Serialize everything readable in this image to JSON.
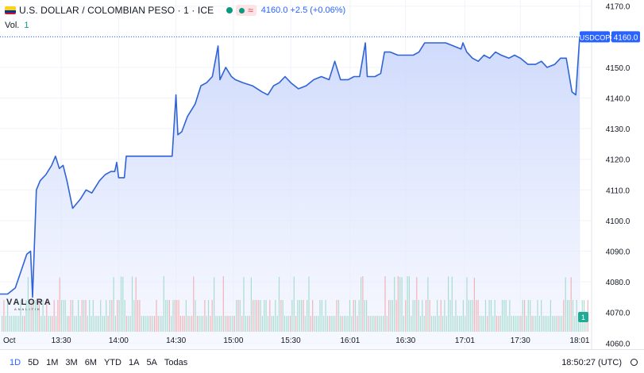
{
  "header": {
    "title": "U.S. DOLLAR / COLOMBIAN PESO · 1 · ICE",
    "approx_symbol": "≈",
    "quote": "4160.0  +2.5 (+0.06%)",
    "vol_label": "Vol.",
    "vol_value": "1"
  },
  "footer": {
    "ranges": [
      "1D",
      "5D",
      "1M",
      "3M",
      "6M",
      "YTD",
      "1A",
      "5A",
      "Todas"
    ],
    "active_range": "1D",
    "clock": "18:50:27 (UTC)"
  },
  "logo": {
    "text": "VALORA",
    "sub": "ANALITIK"
  },
  "colors": {
    "line": "#2f63d6",
    "area_top": "#c6d3fb",
    "area_bottom": "#f1f4ff",
    "vol_up": "#9cd7c9",
    "vol_down": "#f1a7ab",
    "badge": "#2962ff"
  },
  "chart_data": {
    "type": "area",
    "title": "U.S. DOLLAR / COLOMBIAN PESO · 1 · ICE",
    "xlabel": "",
    "ylabel": "",
    "ylim": [
      4058,
      4172
    ],
    "x_range": [
      "12:58",
      "18:06"
    ],
    "yticks": [
      "4170.0",
      "4160.0",
      "4150.0",
      "4140.0",
      "4130.0",
      "4120.0",
      "4110.0",
      "4100.0",
      "4090.0",
      "4080.0",
      "4070.0",
      "4060.0"
    ],
    "xticks": [
      {
        "t": "13:30",
        "label": "13:30"
      },
      {
        "t": "14:00",
        "label": "14:00"
      },
      {
        "t": "14:30",
        "label": "14:30"
      },
      {
        "t": "15:00",
        "label": "15:00"
      },
      {
        "t": "15:30",
        "label": "15:30"
      },
      {
        "t": "16:01",
        "label": "16:01"
      },
      {
        "t": "16:30",
        "label": "16:30"
      },
      {
        "t": "17:01",
        "label": "17:01"
      },
      {
        "t": "17:30",
        "label": "17:30"
      },
      {
        "t": "18:01",
        "label": "18:01"
      }
    ],
    "first_axis_label": "Oct",
    "last_price": "4160.0",
    "last_label": "USDCOP",
    "volume_badge": "1",
    "series": [
      {
        "points": [
          [
            "12:58",
            4076
          ],
          [
            "13:02",
            4076
          ],
          [
            "13:06",
            4078
          ],
          [
            "13:12",
            4089
          ],
          [
            "13:14",
            4090
          ],
          [
            "13:15",
            4075
          ],
          [
            "13:17",
            4110
          ],
          [
            "13:19",
            4113
          ],
          [
            "13:22",
            4115
          ],
          [
            "13:25",
            4118
          ],
          [
            "13:27",
            4121
          ],
          [
            "13:29",
            4117
          ],
          [
            "13:31",
            4118
          ],
          [
            "13:33",
            4113
          ],
          [
            "13:36",
            4104
          ],
          [
            "13:40",
            4107
          ],
          [
            "13:43",
            4110
          ],
          [
            "13:46",
            4109
          ],
          [
            "13:50",
            4113
          ],
          [
            "13:53",
            4115
          ],
          [
            "13:56",
            4116
          ],
          [
            "13:58",
            4116
          ],
          [
            "13:59",
            4119
          ],
          [
            "14:00",
            4114
          ],
          [
            "14:03",
            4114
          ],
          [
            "14:04",
            4121
          ],
          [
            "14:10",
            4121
          ],
          [
            "14:20",
            4121
          ],
          [
            "14:28",
            4121
          ],
          [
            "14:29",
            4131
          ],
          [
            "14:30",
            4141
          ],
          [
            "14:31",
            4128
          ],
          [
            "14:33",
            4129
          ],
          [
            "14:36",
            4134
          ],
          [
            "14:40",
            4138
          ],
          [
            "14:43",
            4144
          ],
          [
            "14:46",
            4145
          ],
          [
            "14:49",
            4147
          ],
          [
            "14:52",
            4157
          ],
          [
            "14:53",
            4146
          ],
          [
            "14:56",
            4150
          ],
          [
            "14:59",
            4147
          ],
          [
            "15:01",
            4146
          ],
          [
            "15:05",
            4145
          ],
          [
            "15:10",
            4144
          ],
          [
            "15:15",
            4142
          ],
          [
            "15:18",
            4141
          ],
          [
            "15:21",
            4144
          ],
          [
            "15:24",
            4145
          ],
          [
            "15:27",
            4147
          ],
          [
            "15:30",
            4145
          ],
          [
            "15:34",
            4143
          ],
          [
            "15:38",
            4144
          ],
          [
            "15:42",
            4146
          ],
          [
            "15:46",
            4147
          ],
          [
            "15:50",
            4146
          ],
          [
            "15:53",
            4152
          ],
          [
            "15:56",
            4146
          ],
          [
            "16:00",
            4146
          ],
          [
            "16:03",
            4147
          ],
          [
            "16:06",
            4147
          ],
          [
            "16:09",
            4158
          ],
          [
            "16:10",
            4147
          ],
          [
            "16:14",
            4147
          ],
          [
            "16:17",
            4148
          ],
          [
            "16:19",
            4155
          ],
          [
            "16:22",
            4155
          ],
          [
            "16:26",
            4154
          ],
          [
            "16:30",
            4154
          ],
          [
            "16:34",
            4154
          ],
          [
            "16:37",
            4155
          ],
          [
            "16:40",
            4158
          ],
          [
            "16:44",
            4158
          ],
          [
            "16:48",
            4158
          ],
          [
            "16:51",
            4158
          ],
          [
            "16:55",
            4157
          ],
          [
            "16:59",
            4156
          ],
          [
            "17:00",
            4158
          ],
          [
            "17:02",
            4155
          ],
          [
            "17:05",
            4153
          ],
          [
            "17:08",
            4152
          ],
          [
            "17:11",
            4154
          ],
          [
            "17:14",
            4153
          ],
          [
            "17:17",
            4155
          ],
          [
            "17:20",
            4154
          ],
          [
            "17:24",
            4153
          ],
          [
            "17:27",
            4154
          ],
          [
            "17:30",
            4153
          ],
          [
            "17:34",
            4151
          ],
          [
            "17:38",
            4151
          ],
          [
            "17:41",
            4152
          ],
          [
            "17:44",
            4150
          ],
          [
            "17:48",
            4151
          ],
          [
            "17:51",
            4153
          ],
          [
            "17:54",
            4153
          ],
          [
            "17:57",
            4142
          ],
          [
            "17:59",
            4141
          ],
          [
            "18:01",
            4160
          ]
        ]
      }
    ],
    "volume": {
      "labels": [
        "13:30",
        "14:00",
        "14:30",
        "15:00",
        "15:30",
        "16:01",
        "16:30",
        "17:01",
        "17:30",
        "18:01"
      ],
      "values": [
        1,
        1,
        1,
        1,
        1,
        1,
        1,
        1,
        1,
        1,
        1,
        1,
        1,
        1,
        1,
        1,
        1,
        1,
        1,
        1,
        1,
        1,
        1,
        1,
        1,
        1,
        1,
        1,
        1,
        1,
        1,
        1,
        1,
        1,
        1,
        1,
        1,
        1,
        1,
        1,
        1,
        1,
        1,
        1,
        1,
        1,
        1,
        1,
        1,
        1,
        1,
        1,
        1,
        1,
        1,
        1,
        1,
        1,
        1,
        1,
        1,
        1,
        1,
        1,
        1,
        1,
        1,
        1,
        1,
        1,
        1,
        1,
        1,
        1,
        1,
        1,
        1,
        1,
        1,
        1,
        1,
        1,
        1,
        1,
        1,
        1,
        1,
        1,
        1,
        1,
        1,
        1,
        1,
        1,
        1,
        1,
        1,
        1,
        1,
        1,
        1,
        1,
        1,
        1,
        1,
        1,
        1,
        1,
        1,
        1,
        1,
        1,
        1,
        1,
        1,
        1,
        1,
        1,
        1,
        1,
        1,
        1,
        1,
        1,
        1,
        1,
        1,
        1,
        1,
        1,
        1,
        1,
        1,
        1,
        1,
        1,
        1,
        1,
        1,
        1,
        1,
        1,
        1,
        1,
        1,
        1,
        1,
        1,
        1,
        1,
        1,
        1,
        1,
        1,
        1,
        1,
        1,
        1,
        1,
        1,
        1,
        1,
        1,
        1,
        1,
        1,
        1,
        1,
        1,
        1,
        1,
        1,
        1,
        1,
        1,
        1,
        1,
        1,
        1,
        1,
        1,
        1,
        1,
        1,
        1,
        1,
        1,
        1,
        1,
        1,
        1,
        1,
        1,
        1,
        1,
        1,
        1,
        1,
        1,
        1,
        1,
        1,
        1,
        1,
        1,
        1,
        1,
        1,
        1,
        1,
        1,
        1,
        1,
        1,
        1,
        1,
        1,
        1,
        1,
        1,
        1,
        1,
        1,
        1,
        1,
        1,
        1,
        1,
        1,
        1,
        1,
        1,
        1,
        1,
        1,
        1,
        1,
        1,
        1,
        1,
        1,
        1,
        1,
        1,
        1,
        1,
        1,
        1,
        1,
        1,
        1,
        1,
        1,
        1,
        1,
        1,
        1,
        1,
        1,
        1,
        1,
        1,
        1,
        1,
        1,
        1,
        1,
        1,
        1,
        1,
        1,
        1,
        1,
        1,
        1,
        1,
        1,
        1,
        1,
        1,
        1,
        1,
        1,
        1,
        1,
        1,
        1,
        1,
        1,
        1,
        1,
        1,
        1,
        1,
        1,
        1,
        1,
        1,
        1,
        1,
        1,
        1,
        1,
        1,
        1,
        1,
        1,
        1,
        1,
        1,
        1,
        1,
        1,
        1,
        1,
        1
      ]
    }
  }
}
